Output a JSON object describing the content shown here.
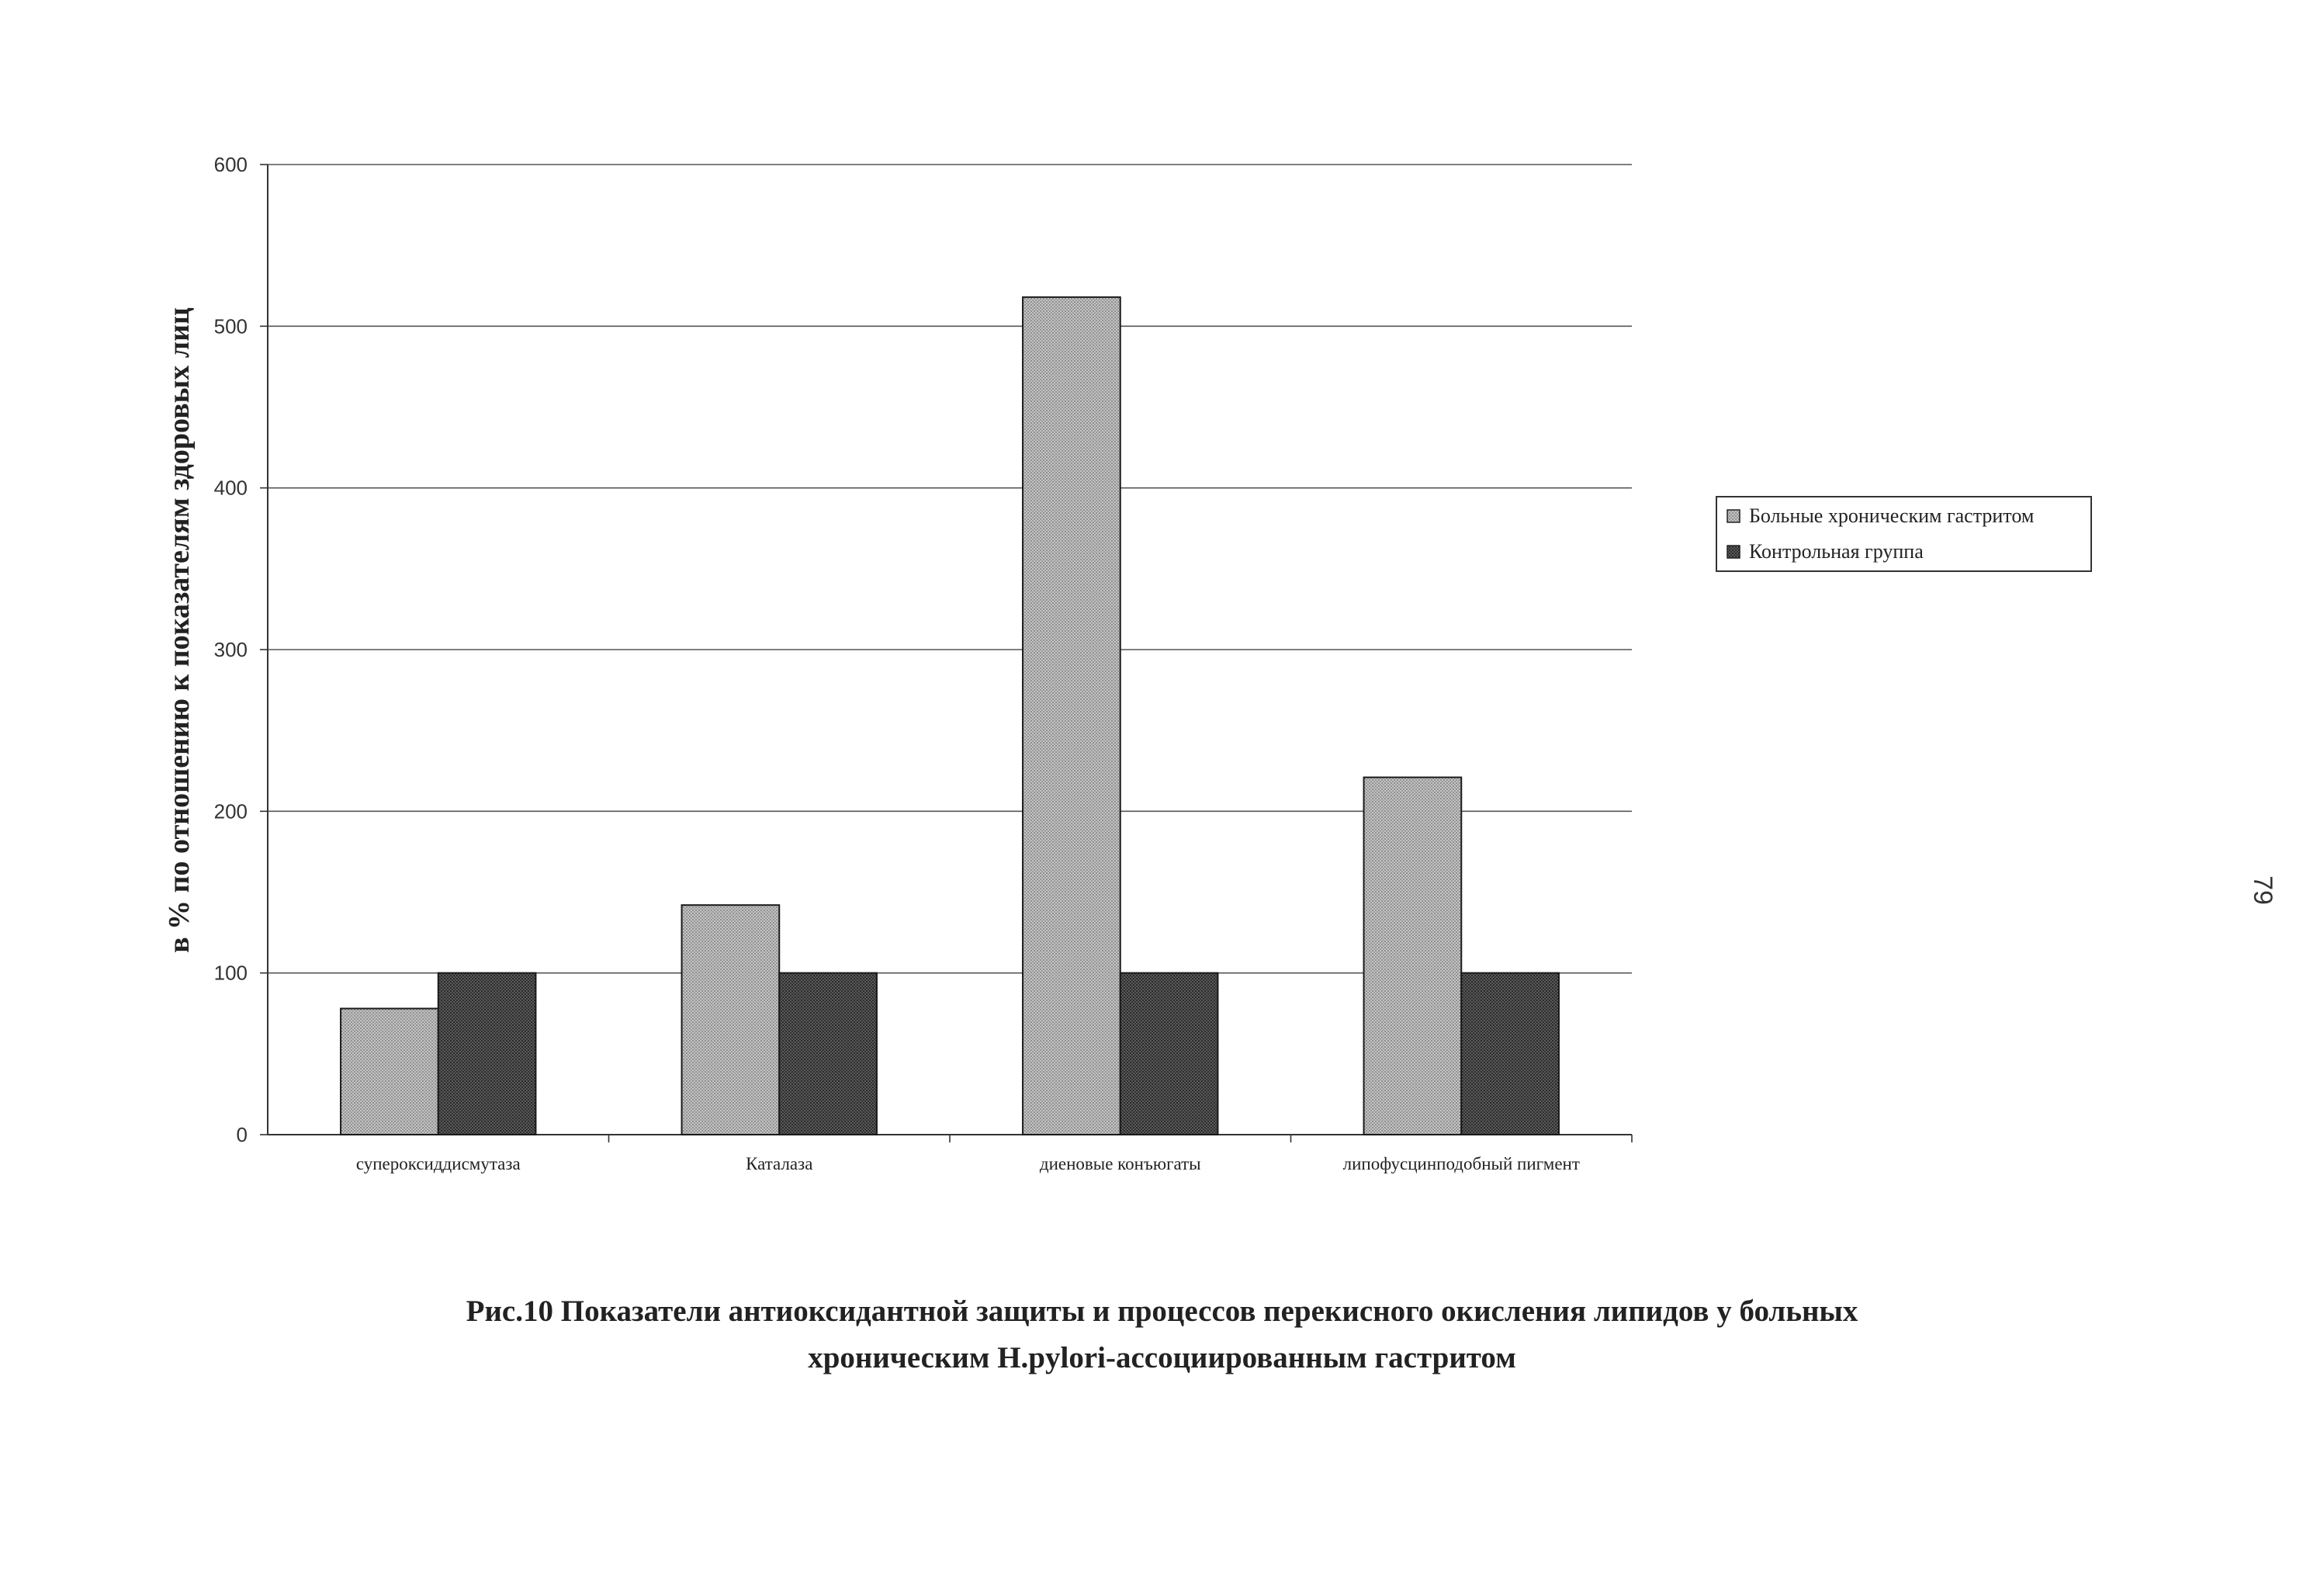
{
  "chart_data": {
    "type": "bar",
    "categories": [
      "супероксиддисмутаза",
      "Каталаза",
      "диеновые конъюгаты",
      "липофусцинподобный пигмент"
    ],
    "series": [
      {
        "name": "Больные хроническим гастритом",
        "values": [
          78,
          142,
          518,
          221
        ],
        "color": "#b5b5b5"
      },
      {
        "name": "Контрольная группа",
        "values": [
          100,
          100,
          100,
          100
        ],
        "color": "#4a4a4a"
      }
    ],
    "ylabel": "в % по отношению к показателям здоровых лиц",
    "ylim": [
      0,
      600
    ],
    "yticks": [
      0,
      100,
      200,
      300,
      400,
      500,
      600
    ],
    "grid": true,
    "legend": "right"
  },
  "caption": {
    "line1": "Рис.10 Показатели антиоксидантной защиты и процессов перекисного окисления липидов у больных",
    "line2": "хроническим H.pylori-ассоциированным гастритом"
  },
  "page_number": "79"
}
